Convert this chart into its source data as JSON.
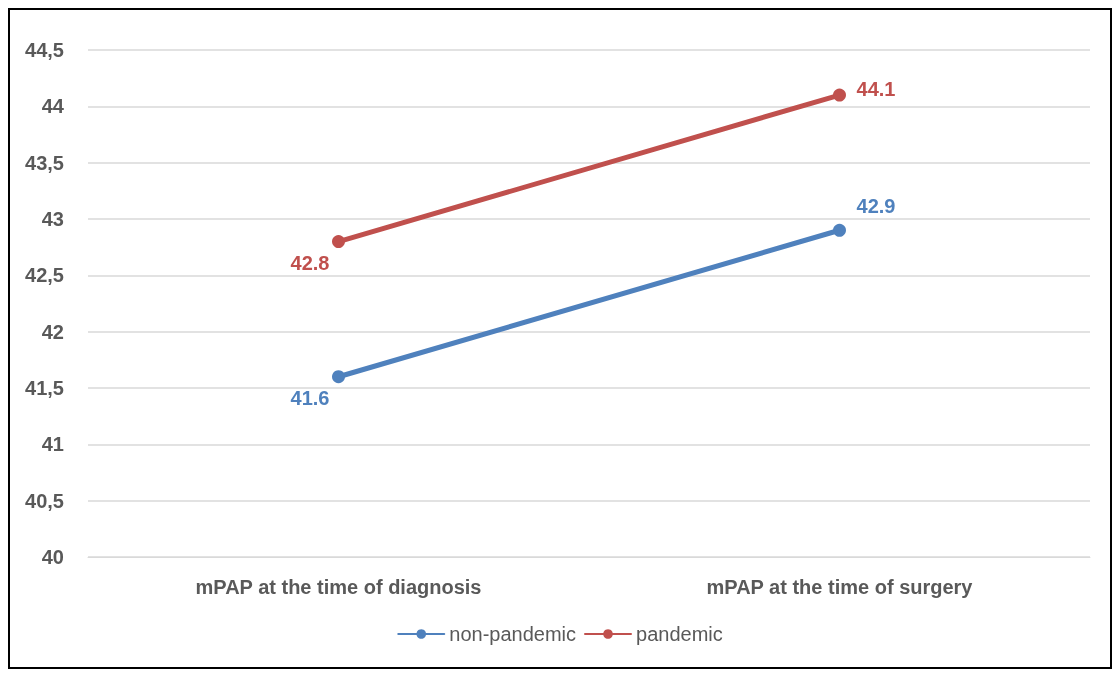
{
  "chart_data": {
    "type": "line",
    "categories": [
      "mPAP at the time of diagnosis",
      "mPAP at the time of surgery"
    ],
    "series": [
      {
        "name": "non-pandemic",
        "color": "#4f81bd",
        "values": [
          41.6,
          42.9
        ]
      },
      {
        "name": "pandemic",
        "color": "#c0504d",
        "values": [
          42.8,
          44.1
        ]
      }
    ],
    "ylim": [
      40,
      44.5
    ],
    "yticks": [
      40,
      {
        "value": 40.5,
        "label": "40,5"
      },
      41,
      {
        "value": 41.5,
        "label": "41,5"
      },
      42,
      {
        "value": 42.5,
        "label": "42,5"
      },
      43,
      {
        "value": 43.5,
        "label": "43,5"
      },
      44,
      {
        "value": 44.5,
        "label": "44,5"
      }
    ],
    "grid": "y",
    "legend": "bottom",
    "marker": "circle",
    "line_style": "solid",
    "data_labels": true
  }
}
